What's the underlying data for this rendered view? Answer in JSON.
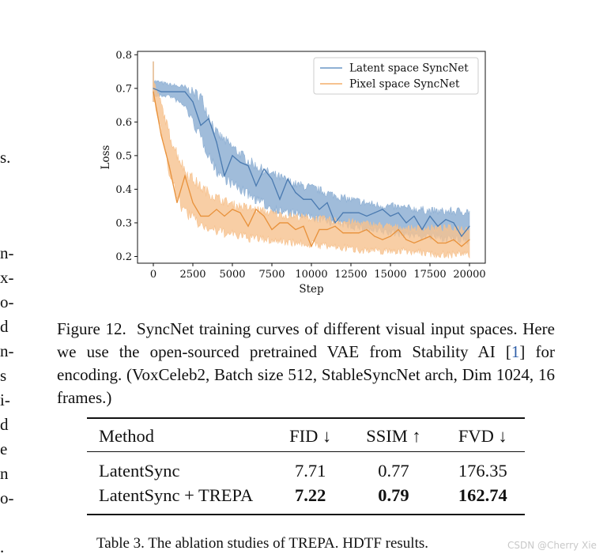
{
  "left_column_fragments": [
    "s.",
    "n-",
    "x-",
    "o-",
    "d",
    "n-",
    "s",
    "i-",
    "d",
    "e",
    "n",
    "o-",
    "."
  ],
  "chart_data": {
    "type": "line",
    "title": "",
    "xlabel": "Step",
    "ylabel": "Loss",
    "xlim": [
      -1000,
      21000
    ],
    "ylim": [
      0.18,
      0.81
    ],
    "xticks": [
      0,
      2500,
      5000,
      7500,
      10000,
      12500,
      15000,
      17500,
      20000
    ],
    "yticks": [
      0.2,
      0.3,
      0.4,
      0.5,
      0.6,
      0.7,
      0.8
    ],
    "grid": false,
    "legend_position": "top-right",
    "series": [
      {
        "name": "Latent space SyncNet",
        "color": "#4a7ab0",
        "band_color": "#8fb0d4",
        "band_upper": [
          [
            0,
            0.72
          ],
          [
            1000,
            0.71
          ],
          [
            2000,
            0.7
          ],
          [
            3000,
            0.67
          ],
          [
            4000,
            0.56
          ],
          [
            5000,
            0.52
          ],
          [
            6000,
            0.48
          ],
          [
            7000,
            0.45
          ],
          [
            8000,
            0.43
          ],
          [
            9000,
            0.41
          ],
          [
            10000,
            0.4
          ],
          [
            12000,
            0.37
          ],
          [
            14000,
            0.35
          ],
          [
            16000,
            0.34
          ],
          [
            18000,
            0.33
          ],
          [
            20000,
            0.33
          ]
        ],
        "band_lower": [
          [
            0,
            0.68
          ],
          [
            1000,
            0.68
          ],
          [
            2000,
            0.65
          ],
          [
            3000,
            0.56
          ],
          [
            4000,
            0.46
          ],
          [
            5000,
            0.42
          ],
          [
            6000,
            0.39
          ],
          [
            7000,
            0.36
          ],
          [
            8000,
            0.34
          ],
          [
            9000,
            0.33
          ],
          [
            10000,
            0.32
          ],
          [
            12000,
            0.3
          ],
          [
            14000,
            0.28
          ],
          [
            16000,
            0.27
          ],
          [
            18000,
            0.26
          ],
          [
            20000,
            0.25
          ]
        ],
        "x": [
          0,
          500,
          1000,
          1500,
          2000,
          2500,
          3000,
          3500,
          4000,
          4500,
          5000,
          5500,
          6000,
          6500,
          7000,
          7500,
          8000,
          8500,
          9000,
          9500,
          10000,
          10500,
          11000,
          11500,
          12000,
          12500,
          13000,
          13500,
          14000,
          14500,
          15000,
          15500,
          16000,
          16500,
          17000,
          17500,
          18000,
          18500,
          19000,
          19500,
          20000
        ],
        "values": [
          0.7,
          0.69,
          0.69,
          0.69,
          0.69,
          0.66,
          0.59,
          0.61,
          0.54,
          0.44,
          0.5,
          0.48,
          0.47,
          0.41,
          0.46,
          0.43,
          0.37,
          0.43,
          0.39,
          0.37,
          0.37,
          0.34,
          0.36,
          0.3,
          0.33,
          0.33,
          0.33,
          0.32,
          0.33,
          0.34,
          0.32,
          0.33,
          0.3,
          0.32,
          0.28,
          0.32,
          0.29,
          0.31,
          0.3,
          0.26,
          0.29
        ]
      },
      {
        "name": "Pixel space SyncNet",
        "color": "#e8913a",
        "band_color": "#f6c28f",
        "band_upper": [
          [
            0,
            0.72
          ],
          [
            500,
            0.65
          ],
          [
            1000,
            0.56
          ],
          [
            1500,
            0.5
          ],
          [
            2000,
            0.45
          ],
          [
            3000,
            0.4
          ],
          [
            4000,
            0.37
          ],
          [
            5000,
            0.35
          ],
          [
            6000,
            0.34
          ],
          [
            8000,
            0.32
          ],
          [
            10000,
            0.31
          ],
          [
            12000,
            0.3
          ],
          [
            14000,
            0.29
          ],
          [
            16000,
            0.28
          ],
          [
            18000,
            0.28
          ],
          [
            20000,
            0.28
          ]
        ],
        "band_lower": [
          [
            0,
            0.68
          ],
          [
            500,
            0.58
          ],
          [
            1000,
            0.46
          ],
          [
            1500,
            0.38
          ],
          [
            2000,
            0.34
          ],
          [
            3000,
            0.3
          ],
          [
            4000,
            0.28
          ],
          [
            5000,
            0.27
          ],
          [
            6000,
            0.26
          ],
          [
            8000,
            0.25
          ],
          [
            10000,
            0.24
          ],
          [
            12000,
            0.23
          ],
          [
            14000,
            0.22
          ],
          [
            16000,
            0.22
          ],
          [
            18000,
            0.21
          ],
          [
            20000,
            0.21
          ]
        ],
        "x": [
          0,
          500,
          1000,
          1500,
          2000,
          2500,
          3000,
          3500,
          4000,
          4500,
          5000,
          5500,
          6000,
          6500,
          7000,
          7500,
          8000,
          8500,
          9000,
          9500,
          10000,
          10500,
          11000,
          11500,
          12000,
          12500,
          13000,
          13500,
          14000,
          14500,
          15000,
          15500,
          16000,
          16500,
          17000,
          17500,
          18000,
          18500,
          19000,
          19500,
          20000
        ],
        "values": [
          0.69,
          0.56,
          0.47,
          0.36,
          0.44,
          0.36,
          0.32,
          0.32,
          0.34,
          0.32,
          0.34,
          0.33,
          0.29,
          0.34,
          0.32,
          0.28,
          0.3,
          0.3,
          0.28,
          0.29,
          0.23,
          0.28,
          0.28,
          0.29,
          0.27,
          0.27,
          0.27,
          0.28,
          0.26,
          0.25,
          0.26,
          0.28,
          0.25,
          0.24,
          0.25,
          0.26,
          0.24,
          0.24,
          0.25,
          0.23,
          0.25
        ]
      }
    ]
  },
  "figure_caption": {
    "label": "Figure 12.",
    "text_a": "SyncNet training curves of different visual input spaces. Here we use the open-sourced pretrained VAE from Stability AI [",
    "ref": "1",
    "text_b": "] for encoding. (VoxCeleb2, Batch size 512, StableSyncNet arch, Dim 1024, 16 frames.)"
  },
  "table": {
    "headers": [
      "Method",
      "FID ↓",
      "SSIM ↑",
      "FVD ↓"
    ],
    "rows": [
      [
        "LatentSync",
        "7.71",
        "0.77",
        "176.35"
      ],
      [
        "LatentSync + TREPA",
        "7.22",
        "0.79",
        "162.74"
      ]
    ],
    "caption": "Table 3. The ablation studies of TREPA. HDTF results."
  },
  "watermark": "CSDN @Cherry Xie"
}
